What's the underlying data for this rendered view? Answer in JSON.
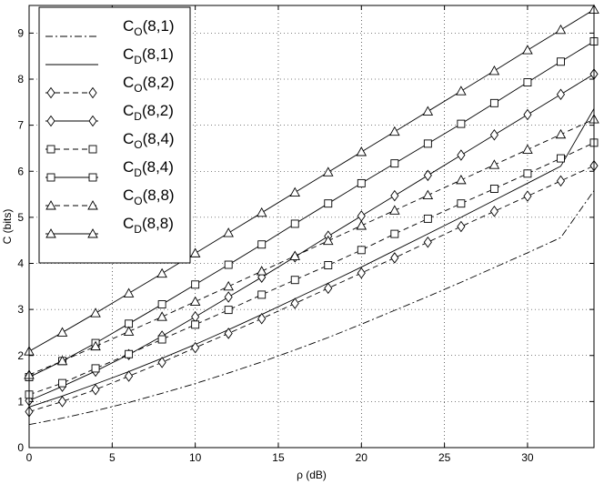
{
  "chart_data": {
    "type": "line",
    "xlabel": "ρ (dB)",
    "ylabel": "C (bits)",
    "xlim": [
      0,
      34
    ],
    "ylim": [
      0,
      9.6
    ],
    "xticks": [
      0,
      5,
      10,
      15,
      20,
      25,
      30
    ],
    "yticks": [
      0,
      1,
      2,
      3,
      4,
      5,
      6,
      7,
      8,
      9
    ],
    "grid": true,
    "legend_position": "top-left",
    "x": [
      0,
      2,
      4,
      6,
      8,
      10,
      12,
      14,
      16,
      18,
      20,
      22,
      24,
      26,
      28,
      30,
      32,
      34
    ],
    "series": [
      {
        "name_main": "C",
        "name_sub": "O",
        "name_args": "(8,1)",
        "style": "dashdot",
        "marker": "none",
        "values": [
          0.5,
          0.64,
          0.8,
          0.98,
          1.18,
          1.39,
          1.62,
          1.86,
          2.12,
          2.39,
          2.68,
          2.98,
          3.28,
          3.59,
          3.91,
          4.23,
          4.56,
          5.58
        ]
      },
      {
        "name_main": "C",
        "name_sub": "D",
        "name_args": "(8,1)",
        "style": "solid",
        "marker": "none",
        "values": [
          0.88,
          1.12,
          1.38,
          1.65,
          1.94,
          2.24,
          2.56,
          2.89,
          3.23,
          3.57,
          3.92,
          4.28,
          4.64,
          5.0,
          5.37,
          5.74,
          6.11,
          7.36
        ]
      },
      {
        "name_main": "C",
        "name_sub": "O",
        "name_args": "(8,2)",
        "style": "dashed",
        "marker": "diamond",
        "values": [
          0.78,
          1.0,
          1.26,
          1.55,
          1.85,
          2.17,
          2.48,
          2.8,
          3.13,
          3.46,
          3.79,
          4.12,
          4.46,
          4.8,
          5.13,
          5.46,
          5.79,
          6.12
        ]
      },
      {
        "name_main": "C",
        "name_sub": "D",
        "name_args": "(8,2)",
        "style": "solid",
        "marker": "diamond",
        "values": [
          1.02,
          1.33,
          1.66,
          2.02,
          2.42,
          2.84,
          3.27,
          3.7,
          4.14,
          4.59,
          5.03,
          5.47,
          5.91,
          6.35,
          6.79,
          7.23,
          7.67,
          8.11
        ]
      },
      {
        "name_main": "C",
        "name_sub": "O",
        "name_args": "(8,4)",
        "style": "dashed",
        "marker": "square",
        "values": [
          1.15,
          1.4,
          1.72,
          2.03,
          2.35,
          2.67,
          2.99,
          3.32,
          3.64,
          3.96,
          4.29,
          4.64,
          4.97,
          5.3,
          5.62,
          5.95,
          6.28,
          6.62
        ]
      },
      {
        "name_main": "C",
        "name_sub": "D",
        "name_args": "(8,4)",
        "style": "solid",
        "marker": "square",
        "values": [
          1.53,
          1.88,
          2.27,
          2.69,
          3.11,
          3.54,
          3.97,
          4.41,
          4.86,
          5.3,
          5.74,
          6.17,
          6.6,
          7.03,
          7.48,
          7.93,
          8.38,
          8.82
        ]
      },
      {
        "name_main": "C",
        "name_sub": "O",
        "name_args": "(8,8)",
        "style": "dashed",
        "marker": "triangle",
        "values": [
          1.58,
          1.88,
          2.2,
          2.52,
          2.84,
          3.17,
          3.5,
          3.83,
          4.16,
          4.49,
          4.82,
          5.15,
          5.48,
          5.81,
          6.14,
          6.47,
          6.8,
          7.13
        ]
      },
      {
        "name_main": "C",
        "name_sub": "D",
        "name_args": "(8,8)",
        "style": "solid",
        "marker": "triangle",
        "values": [
          2.09,
          2.5,
          2.92,
          3.35,
          3.78,
          4.22,
          4.66,
          5.1,
          5.54,
          5.98,
          6.42,
          6.86,
          7.3,
          7.74,
          8.18,
          8.63,
          9.07,
          9.51
        ]
      }
    ]
  }
}
